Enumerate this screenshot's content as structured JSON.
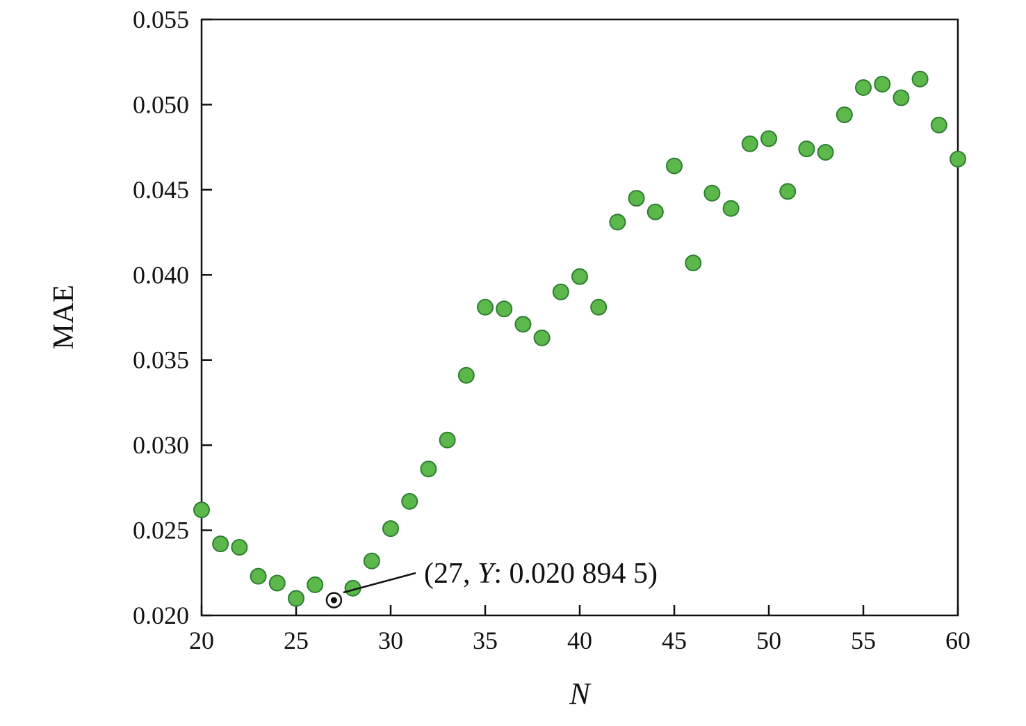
{
  "chart_data": {
    "type": "scatter",
    "title": "",
    "xlabel": "N",
    "ylabel": "MAE",
    "xlim": [
      20,
      60
    ],
    "ylim": [
      0.02,
      0.055
    ],
    "grid": false,
    "legend": null,
    "x_ticks": [
      20,
      25,
      30,
      35,
      40,
      45,
      50,
      55,
      60
    ],
    "x_tick_labels": [
      "20",
      "25",
      "30",
      "35",
      "40",
      "45",
      "50",
      "55",
      "60"
    ],
    "y_ticks": [
      0.02,
      0.025,
      0.03,
      0.035,
      0.04,
      0.045,
      0.05,
      0.055
    ],
    "y_tick_labels": [
      "0.020",
      "0.025",
      "0.030",
      "0.035",
      "0.040",
      "0.045",
      "0.050",
      "0.055"
    ],
    "marker_color": "#5cb84a",
    "marker_edge_color": "#2e7d32",
    "axis_color": "#111111",
    "x": [
      20,
      21,
      22,
      23,
      24,
      25,
      26,
      27,
      28,
      29,
      30,
      31,
      32,
      33,
      34,
      35,
      36,
      37,
      38,
      39,
      40,
      41,
      42,
      43,
      44,
      45,
      46,
      47,
      48,
      49,
      50,
      51,
      52,
      53,
      54,
      55,
      56,
      57,
      58,
      59,
      60
    ],
    "y": [
      0.0262,
      0.0242,
      0.024,
      0.0223,
      0.0219,
      0.021,
      0.0218,
      0.0208945,
      0.0216,
      0.0232,
      0.0251,
      0.0267,
      0.0286,
      0.0303,
      0.0341,
      0.0381,
      0.038,
      0.0371,
      0.0363,
      0.039,
      0.0399,
      0.0381,
      0.0431,
      0.0445,
      0.0437,
      0.0464,
      0.0407,
      0.0448,
      0.0439,
      0.0477,
      0.048,
      0.0449,
      0.0474,
      0.0472,
      0.0494,
      0.051,
      0.0512,
      0.0504,
      0.0515,
      0.0488,
      0.0468
    ],
    "annotation": {
      "x": 27,
      "y": 0.0208945,
      "text_prefix": "(27, ",
      "text_var": "Y",
      "text_suffix": ": 0.020 894 5)"
    }
  }
}
